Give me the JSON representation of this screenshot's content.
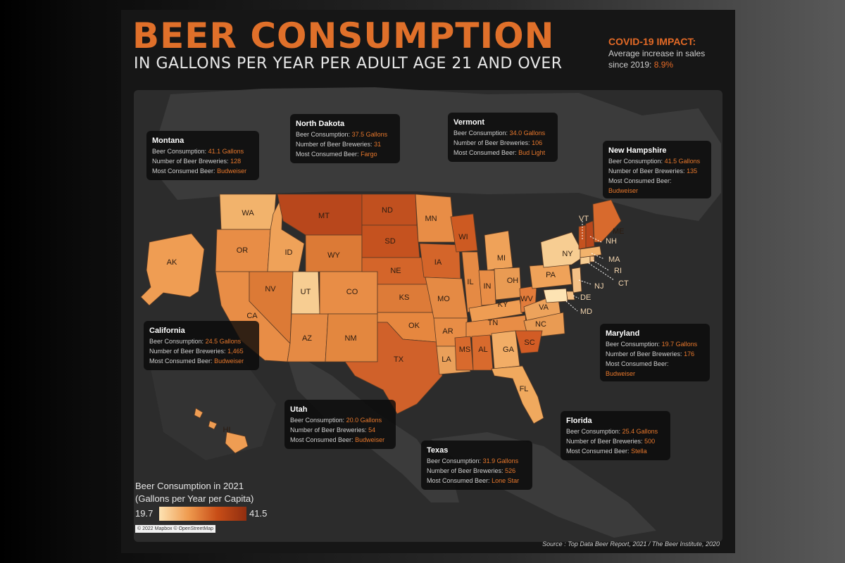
{
  "title": "BEER CONSUMPTION",
  "subtitle": "IN GALLONS PER YEAR PER ADULT AGE 21 AND OVER",
  "covid": {
    "heading": "COVID-19 IMPACT:",
    "line1": "Average increase in sales",
    "line2": "since 2019:",
    "value": "8.9%"
  },
  "labels": {
    "consumption": "Beer Consumption:",
    "breweries": "Number of Beer Breweries:",
    "beer": "Most Consumed Beer:"
  },
  "cards": {
    "montana": {
      "name": "Montana",
      "consumption": "41.1 Gallons",
      "breweries": "128",
      "beer": "Budweiser"
    },
    "north_dakota": {
      "name": "North Dakota",
      "consumption": "37.5 Gallons",
      "breweries": "31",
      "beer": "Fargo"
    },
    "vermont": {
      "name": "Vermont",
      "consumption": "34.0 Gallons",
      "breweries": "106",
      "beer": "Bud Light"
    },
    "new_hampshire": {
      "name": "New Hampshire",
      "consumption": "41.5 Gallons",
      "breweries": "135",
      "beer": "Budweiser"
    },
    "california": {
      "name": "California",
      "consumption": "24.5 Gallons",
      "breweries": "1,465",
      "beer": "Budweiser"
    },
    "maryland": {
      "name": "Maryland",
      "consumption": "19.7 Gallons",
      "breweries": "176",
      "beer": "Budweiser"
    },
    "utah": {
      "name": "Utah",
      "consumption": "20.0 Gallons",
      "breweries": "54",
      "beer": "Budweiser"
    },
    "texas": {
      "name": "Texas",
      "consumption": "31.9 Gallons",
      "breweries": "526",
      "beer": "Lone Star"
    },
    "florida": {
      "name": "Florida",
      "consumption": "25.4 Gallons",
      "breweries": "500",
      "beer": "Stella"
    }
  },
  "legend": {
    "title_line1": "Beer Consumption in 2021",
    "title_line2": "(Gallons per Year per Capita)",
    "min": "19.7",
    "max": "41.5",
    "color_low": "#fde3b3",
    "color_high": "#8f2e10"
  },
  "map_credit": "© 2022 Mapbox © OpenStreetMap",
  "source": "Source : Top Data Beer Report, 2021 / The Beer Institute, 2020",
  "states": [
    "WA",
    "OR",
    "CA",
    "ID",
    "NV",
    "UT",
    "AZ",
    "MT",
    "WY",
    "CO",
    "NM",
    "ND",
    "SD",
    "NE",
    "KS",
    "OK",
    "TX",
    "MN",
    "IA",
    "MO",
    "AR",
    "LA",
    "WI",
    "IL",
    "MI",
    "IN",
    "KY",
    "TN",
    "MS",
    "AL",
    "OH",
    "WV",
    "GA",
    "SC",
    "NC",
    "VA",
    "FL",
    "PA",
    "NY",
    "NJ",
    "DE",
    "MD",
    "CT",
    "RI",
    "MA",
    "VT",
    "NH",
    "ME",
    "AK",
    "HI"
  ],
  "colors": {
    "accent": "#e46a26",
    "land": "#3b3b3b",
    "water": "#161616",
    "state_border": "#6b4a32"
  }
}
